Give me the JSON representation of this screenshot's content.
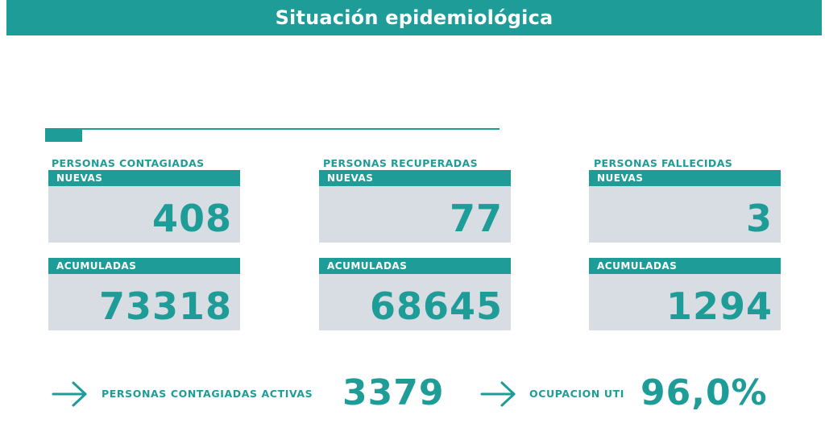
{
  "title": "Situación epidemiológica",
  "colors": {
    "accent": "#1e9c98",
    "card_bg": "#d7dde3"
  },
  "groups": [
    {
      "label": "PERSONAS CONTAGIADAS",
      "nuevas_label": "NUEVAS",
      "nuevas_value": "408",
      "acumuladas_label": "ACUMULADAS",
      "acumuladas_value": "73318"
    },
    {
      "label": "PERSONAS RECUPERADAS",
      "nuevas_label": "NUEVAS",
      "nuevas_value": "77",
      "acumuladas_label": "ACUMULADAS",
      "acumuladas_value": "68645"
    },
    {
      "label": "PERSONAS FALLECIDAS",
      "nuevas_label": "NUEVAS",
      "nuevas_value": "3",
      "acumuladas_label": "ACUMULADAS",
      "acumuladas_value": "1294"
    }
  ],
  "active": {
    "label": "PERSONAS CONTAGIADAS ACTIVAS",
    "value": "3379",
    "icon": "arrow-right-icon"
  },
  "uti": {
    "label": "OCUPACION UTI",
    "value": "96,0%",
    "icon": "arrow-right-icon"
  }
}
